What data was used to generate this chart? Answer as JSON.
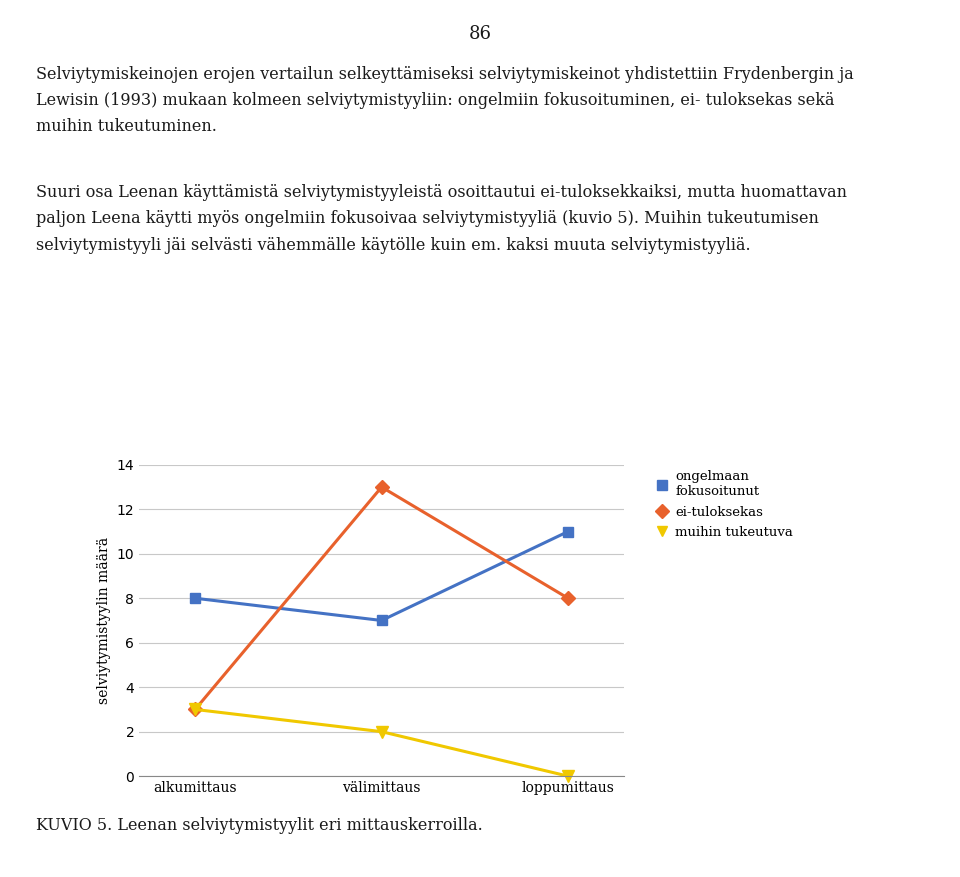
{
  "x_labels": [
    "alkumittaus",
    "välimittaus",
    "loppumittaus"
  ],
  "series": [
    {
      "label": "ongelmaan\nfokusoitunut",
      "values": [
        8,
        7,
        11
      ],
      "color": "#4472C4",
      "marker": "s",
      "marker_size": 7,
      "linewidth": 2.2
    },
    {
      "label": "ei-tuloksekas",
      "values": [
        3,
        13,
        8
      ],
      "color": "#E8612C",
      "marker": "D",
      "marker_size": 7,
      "linewidth": 2.2
    },
    {
      "label": "muihin tukeutuva",
      "values": [
        3,
        2,
        0
      ],
      "color": "#F0C800",
      "marker": "v",
      "marker_size": 9,
      "linewidth": 2.2
    }
  ],
  "ylabel": "selviytymistyylin määrä",
  "ylim": [
    0,
    14
  ],
  "yticks": [
    0,
    2,
    4,
    6,
    8,
    10,
    12,
    14
  ],
  "page_number": "86",
  "para1": "Selviytymiskeinojen erojen vertailun selkeyttämiseksi selviytymiskeinot yhdistettiin Frydenbergin ja Lewisin (1993) mukaan kolmeen selviytymistyyliin: ongelmiin fokusoituminen, ei- tuloksekas sekä muihin tukeutuminen.",
  "para2": "Suuri osa Leenan käyttämistä selviytymistyyleistä osoittautui ei-tuloksekkaiksi, mutta huomattavan paljon Leena käytti myös ongelmiin fokusoivaa selviytymistyyliä (kuvio 5). Muihin tukeutumisen selviytymistyyli jäi selvästi vähemmälle käytölle kuin em. kaksi muuta selviytymistyyliä.",
  "caption": "KUVIO 5. Leenan selviytymistyylit eri mittauskerroilla.",
  "background_color": "#FFFFFF",
  "grid_color": "#C8C8C8",
  "text_color": "#1A1A1A"
}
